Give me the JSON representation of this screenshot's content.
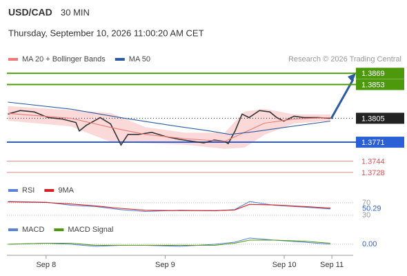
{
  "header": {
    "symbol": "USD/CAD",
    "interval": "30 MIN",
    "datetime": "Thursday, September 10, 2026 11:00:20 AM CET"
  },
  "chart_data": [
    {
      "type": "line",
      "source": "Research © 2026 Trading Central",
      "ylim": [
        1.3721,
        1.388
      ],
      "xlim": [
        -7.9,
        61.9
      ],
      "series": [
        {
          "color": "#333333",
          "x": [
            -7.7,
            -5.2,
            -2.4,
            0.4,
            3.2,
            6.0,
            6.7,
            8.1,
            10.9,
            13.0,
            14.4,
            15.1,
            16.5,
            18.6,
            21.3,
            24.1,
            26.9,
            29.7,
            31.8,
            33.9,
            36.0,
            36.7,
            38.1,
            39.5,
            40.9,
            43.0,
            45.1,
            46.5,
            47.9,
            50.0,
            52.0,
            54.8,
            57.3
          ],
          "values": [
            1.3811,
            1.3816,
            1.3814,
            1.3806,
            1.3804,
            1.3799,
            1.3787,
            1.3795,
            1.3806,
            1.3797,
            1.3777,
            1.3767,
            1.3782,
            1.3782,
            1.3785,
            1.3779,
            1.3775,
            1.3772,
            1.377,
            1.3774,
            1.3772,
            1.3769,
            1.3787,
            1.3811,
            1.3806,
            1.3816,
            1.3814,
            1.3806,
            1.3801,
            1.3808,
            1.3806,
            1.3806,
            1.3805
          ]
        },
        {
          "name": "MA 20 + Bollinger Bands",
          "color": "#f07878",
          "band_color": "#fbd9d9",
          "x": [
            -7.7,
            5,
            13,
            20,
            28,
            36,
            40,
            44,
            50,
            57.3
          ],
          "values": [
            1.3812,
            1.3805,
            1.3792,
            1.3782,
            1.3776,
            1.3772,
            1.3785,
            1.3798,
            1.3804,
            1.3806
          ],
          "upper": [
            1.3822,
            1.3816,
            1.3812,
            1.3792,
            1.3784,
            1.3784,
            1.3814,
            1.3818,
            1.381,
            1.381
          ],
          "lower": [
            1.3802,
            1.3794,
            1.3772,
            1.377,
            1.3768,
            1.3762,
            1.3764,
            1.3782,
            1.3798,
            1.3802
          ]
        },
        {
          "name": "MA 50",
          "color": "#2b5aa0",
          "x": [
            -7.7,
            5,
            15,
            25,
            33,
            37,
            42,
            48,
            57.3
          ],
          "values": [
            1.3828,
            1.3818,
            1.3806,
            1.3795,
            1.3787,
            1.3782,
            1.3786,
            1.3792,
            1.3801
          ]
        }
      ],
      "levels": [
        {
          "value": 1.3869,
          "color": "#4c9a0b",
          "style": "box"
        },
        {
          "value": 1.3853,
          "color": "#4c9a0b",
          "style": "box"
        },
        {
          "value": 1.3805,
          "color": "#222222",
          "style": "box",
          "dotted": true
        },
        {
          "value": 1.3771,
          "color": "#2a5fd6",
          "style": "box"
        },
        {
          "value": 1.3744,
          "color": "#e05050",
          "style": "text"
        },
        {
          "value": 1.3728,
          "color": "#e05050",
          "style": "text"
        }
      ]
    },
    {
      "type": "line",
      "ylim": [
        21,
        92
      ],
      "xlim": [
        -7.9,
        61.9
      ],
      "yticks": [
        30,
        70
      ],
      "last_value": 50.29,
      "series": [
        {
          "name": "RSI",
          "color": "#5b82d6",
          "x": [
            -7.7,
            0,
            5,
            10,
            15,
            20,
            27,
            34,
            38,
            41,
            46,
            52,
            57.3
          ],
          "values": [
            74,
            72,
            62,
            58,
            48,
            42,
            46,
            44,
            48,
            74,
            62,
            56,
            50.29
          ]
        },
        {
          "name": "9MA",
          "color": "#d42020",
          "x": [
            -7.7,
            0,
            5,
            10,
            15,
            20,
            27,
            34,
            38,
            41,
            46,
            52,
            57.3
          ],
          "values": [
            73,
            71,
            66,
            60,
            52,
            46,
            45,
            45,
            47,
            65,
            63,
            58,
            53
          ]
        }
      ]
    },
    {
      "type": "line",
      "ylim": [
        -0.0012,
        0.0012
      ],
      "xlim": [
        -7.9,
        61.9
      ],
      "yticks": [
        {
          "value": 0,
          "label": "0.00"
        }
      ],
      "xticks": [
        {
          "value": 0,
          "label": "Sep 8"
        },
        {
          "value": 24,
          "label": "Sep 9"
        },
        {
          "value": 48,
          "label": "Sep 10"
        },
        {
          "value": 57.6,
          "label": "Sep 11"
        }
      ],
      "series": [
        {
          "name": "MACD",
          "color": "#5b82d6",
          "x": [
            -7.7,
            0,
            5,
            10,
            15,
            20,
            27,
            34,
            38,
            41,
            46,
            52,
            57.3
          ],
          "values": [
            0.0,
            0.0001,
            0.0,
            -0.0002,
            -0.0001,
            -0.0001,
            -0.0002,
            0.0,
            0.0002,
            0.0006,
            0.0004,
            0.0002,
            0.0
          ]
        },
        {
          "name": "MACD Signal",
          "color": "#4c9a0b",
          "x": [
            -7.7,
            0,
            5,
            10,
            15,
            20,
            27,
            34,
            38,
            41,
            46,
            52,
            57.3
          ],
          "values": [
            0.0,
            0.0001,
            0.0001,
            -0.0001,
            -0.0001,
            -0.0001,
            -0.0001,
            -0.0001,
            0.0001,
            0.0004,
            0.0004,
            0.0003,
            0.0001
          ]
        }
      ]
    }
  ]
}
